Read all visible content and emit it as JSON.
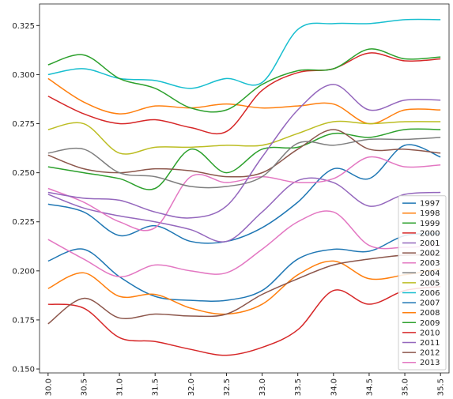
{
  "chart_data": {
    "type": "line",
    "x": [
      30.0,
      30.5,
      31.0,
      31.5,
      32.0,
      32.5,
      33.0,
      33.5,
      34.0,
      34.5,
      35.0,
      35.5
    ],
    "xlim": [
      29.88,
      35.62
    ],
    "xticks": [
      {
        "value": 30.0,
        "label": "30.0"
      },
      30.5,
      {
        "value": 31.0,
        "label": "31.0"
      },
      31.5,
      {
        "value": 32.0,
        "label": "32.0"
      },
      32.5,
      {
        "value": 33.0,
        "label": "33.0"
      },
      33.5,
      {
        "value": 34.0,
        "label": "34.0"
      },
      34.5,
      {
        "value": 35.0,
        "label": "35.0"
      },
      35.5
    ],
    "ylim": [
      0.148,
      0.336
    ],
    "yticks": [
      {
        "value": 0.15,
        "label": "0.150"
      },
      0.175,
      {
        "value": 0.2,
        "label": "0.200"
      },
      0.225,
      {
        "value": 0.25,
        "label": "0.250"
      },
      0.275,
      {
        "value": 0.3,
        "label": "0.300"
      },
      0.325
    ],
    "legend": "lower right",
    "series": [
      {
        "name": "1997",
        "color": "#1f77b4",
        "values": [
          0.234,
          0.23,
          0.218,
          0.223,
          0.215,
          0.215,
          0.222,
          0.235,
          0.252,
          0.247,
          0.264,
          0.258
        ]
      },
      {
        "name": "1998",
        "color": "#ff7f0e",
        "values": [
          0.298,
          0.286,
          0.28,
          0.284,
          0.283,
          0.285,
          0.283,
          0.284,
          0.285,
          0.275,
          0.282,
          0.282
        ]
      },
      {
        "name": "1999",
        "color": "#2ca02c",
        "values": [
          0.253,
          0.25,
          0.247,
          0.242,
          0.262,
          0.25,
          0.262,
          0.263,
          0.27,
          0.268,
          0.272,
          0.272
        ]
      },
      {
        "name": "2000",
        "color": "#d62728",
        "values": [
          0.289,
          0.28,
          0.275,
          0.277,
          0.273,
          0.271,
          0.292,
          0.301,
          0.303,
          0.311,
          0.307,
          0.308
        ]
      },
      {
        "name": "2001",
        "color": "#9467bd",
        "values": [
          0.239,
          0.232,
          0.228,
          0.225,
          0.221,
          0.215,
          0.23,
          0.246,
          0.245,
          0.233,
          0.239,
          0.24
        ]
      },
      {
        "name": "2002",
        "color": "#8c564b",
        "values": [
          0.259,
          0.252,
          0.25,
          0.252,
          0.251,
          0.248,
          0.25,
          0.262,
          0.272,
          0.262,
          0.262,
          0.26
        ]
      },
      {
        "name": "2003",
        "color": "#e377c2",
        "values": [
          0.242,
          0.235,
          0.225,
          0.222,
          0.248,
          0.245,
          0.248,
          0.245,
          0.247,
          0.258,
          0.253,
          0.254
        ]
      },
      {
        "name": "2004",
        "color": "#7f7f7f",
        "values": [
          0.26,
          0.262,
          0.25,
          0.248,
          0.243,
          0.243,
          0.248,
          0.265,
          0.264,
          0.267,
          0.267,
          0.268
        ]
      },
      {
        "name": "2005",
        "color": "#bcbd22",
        "values": [
          0.272,
          0.275,
          0.26,
          0.263,
          0.263,
          0.264,
          0.264,
          0.27,
          0.276,
          0.275,
          0.276,
          0.276
        ]
      },
      {
        "name": "2006",
        "color": "#17becf",
        "values": [
          0.3,
          0.303,
          0.298,
          0.297,
          0.293,
          0.298,
          0.296,
          0.323,
          0.326,
          0.326,
          0.328,
          0.328
        ]
      },
      {
        "name": "2007",
        "color": "#1f77b4",
        "values": [
          0.205,
          0.211,
          0.197,
          0.187,
          0.185,
          0.185,
          0.19,
          0.206,
          0.211,
          0.21,
          0.218,
          0.219
        ]
      },
      {
        "name": "2008",
        "color": "#ff7f0e",
        "values": [
          0.191,
          0.199,
          0.187,
          0.188,
          0.181,
          0.178,
          0.183,
          0.198,
          0.205,
          0.196,
          0.198,
          0.201
        ]
      },
      {
        "name": "2009",
        "color": "#2ca02c",
        "values": [
          0.305,
          0.31,
          0.298,
          0.293,
          0.283,
          0.282,
          0.295,
          0.302,
          0.303,
          0.313,
          0.308,
          0.309
        ]
      },
      {
        "name": "2010",
        "color": "#d62728",
        "values": [
          0.183,
          0.181,
          0.166,
          0.164,
          0.16,
          0.157,
          0.161,
          0.17,
          0.19,
          0.183,
          0.19,
          0.192
        ]
      },
      {
        "name": "2011",
        "color": "#9467bd",
        "values": [
          0.24,
          0.237,
          0.236,
          0.23,
          0.227,
          0.233,
          0.258,
          0.282,
          0.295,
          0.282,
          0.287,
          0.287
        ]
      },
      {
        "name": "2012",
        "color": "#8c564b",
        "values": [
          0.173,
          0.186,
          0.176,
          0.178,
          0.177,
          0.178,
          0.188,
          0.196,
          0.203,
          0.206,
          0.208,
          0.208
        ]
      },
      {
        "name": "2013",
        "color": "#e377c2",
        "values": [
          0.216,
          0.206,
          0.197,
          0.203,
          0.2,
          0.199,
          0.211,
          0.225,
          0.23,
          0.213,
          0.212,
          0.213
        ]
      }
    ]
  }
}
